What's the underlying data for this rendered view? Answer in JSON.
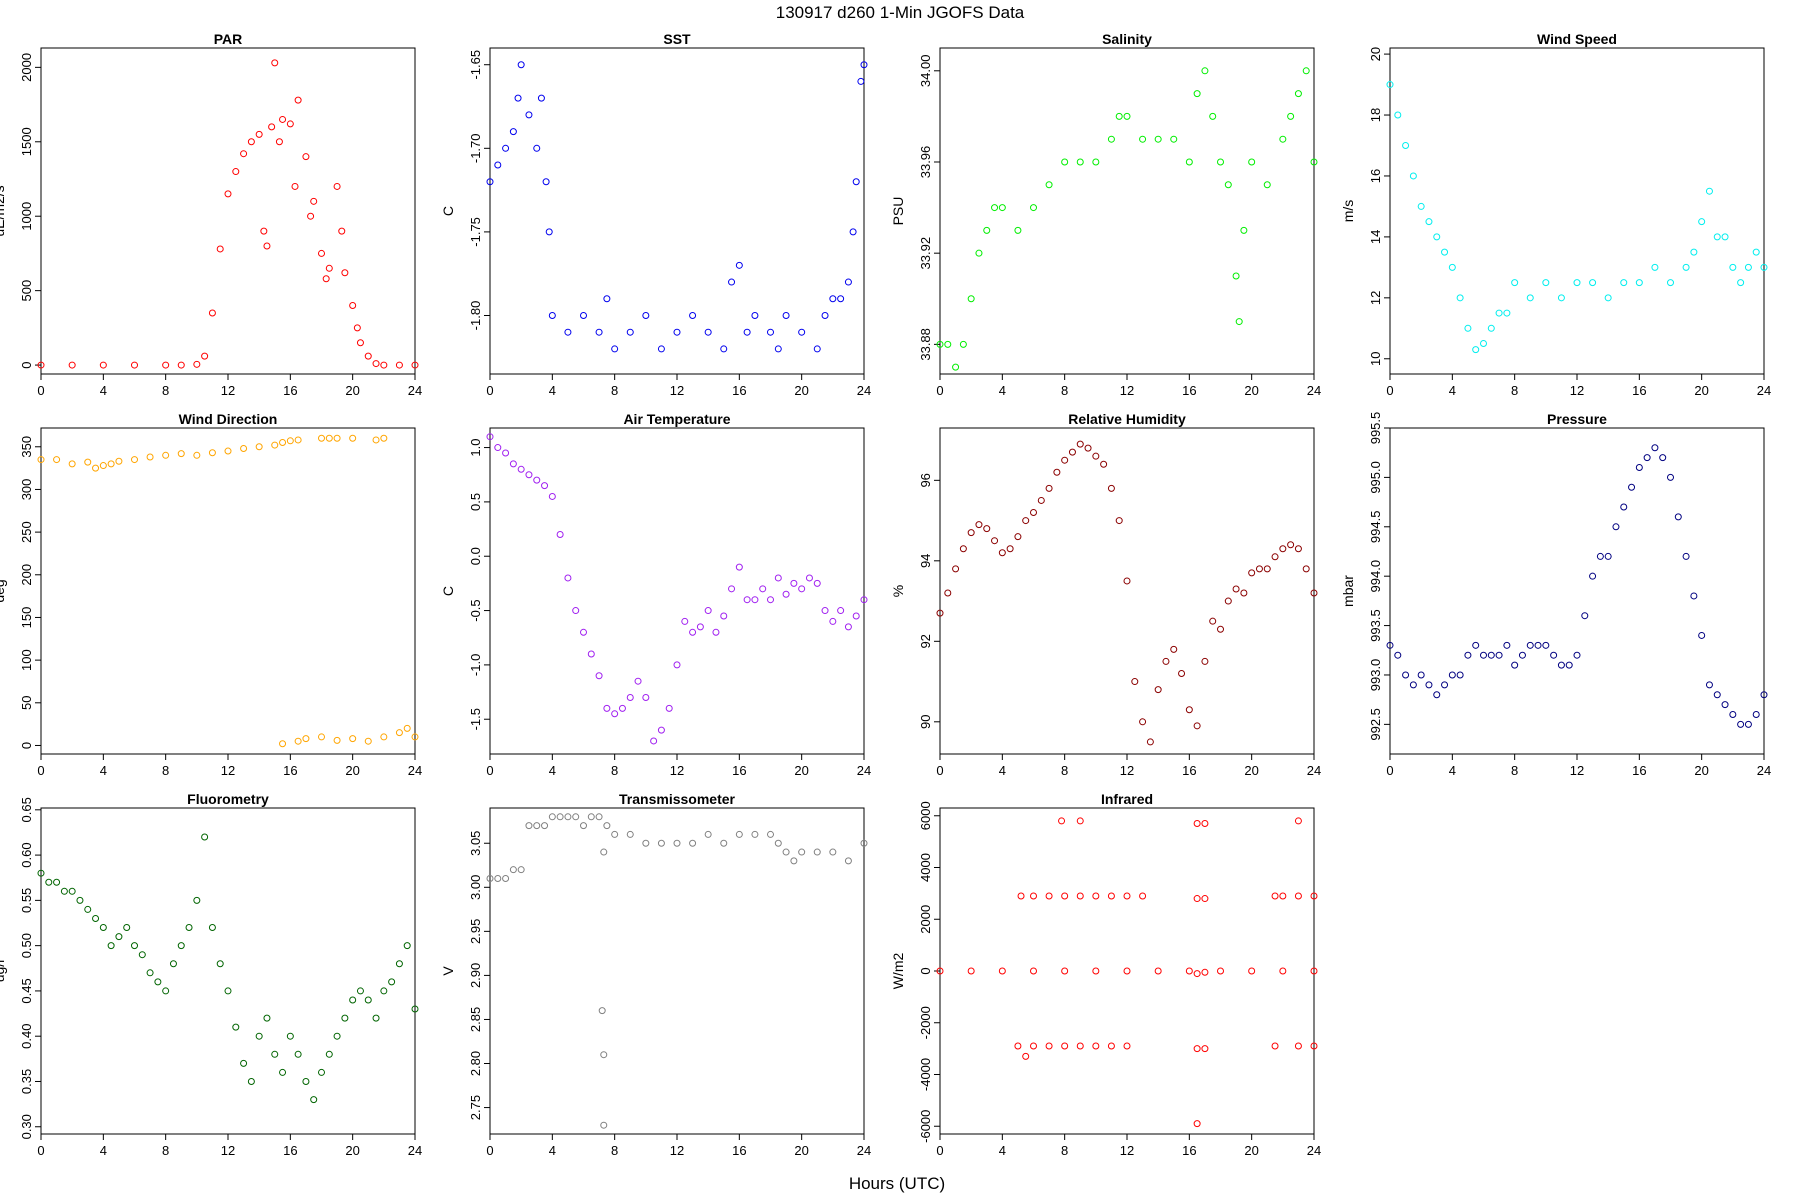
{
  "figure": {
    "title": "130917   d260   1-Min  JGOFS Data",
    "xlabel": "Hours (UTC)"
  },
  "chart_data": [
    {
      "type": "scatter",
      "title": "PAR",
      "ylabel": "uE/m2/s",
      "color": "#ff0000",
      "xlim": [
        0,
        24
      ],
      "xticks": [
        0,
        4,
        8,
        12,
        16,
        20,
        24
      ],
      "ylim": [
        -60,
        2130
      ],
      "yticks": [
        0,
        500,
        1000,
        1500,
        2000
      ],
      "x": [
        0,
        2,
        4,
        6,
        8,
        9,
        10,
        10.5,
        11,
        11.5,
        12,
        12.5,
        13,
        13.5,
        14,
        14.3,
        14.5,
        14.8,
        15,
        15.3,
        15.5,
        16,
        16.3,
        16.5,
        17,
        17.3,
        17.5,
        18,
        18.3,
        18.5,
        19,
        19.3,
        19.5,
        20,
        20.3,
        20.5,
        21,
        21.5,
        22,
        23,
        24
      ],
      "y": [
        0,
        0,
        0,
        0,
        0,
        0,
        5,
        60,
        350,
        780,
        1150,
        1300,
        1420,
        1500,
        1550,
        900,
        800,
        1600,
        2030,
        1500,
        1650,
        1620,
        1200,
        1780,
        1400,
        1000,
        1100,
        750,
        580,
        650,
        1200,
        900,
        620,
        400,
        250,
        150,
        60,
        10,
        0,
        0,
        0
      ]
    },
    {
      "type": "scatter",
      "title": "SST",
      "ylabel": "C",
      "color": "#0000ee",
      "xlim": [
        0,
        24
      ],
      "xticks": [
        0,
        4,
        8,
        12,
        16,
        20,
        24
      ],
      "ylim": [
        -1.835,
        -1.64
      ],
      "yticks": [
        -1.8,
        -1.75,
        -1.7,
        -1.65
      ],
      "x": [
        0,
        0.5,
        1,
        1.5,
        1.8,
        2,
        2.5,
        3,
        3.3,
        3.6,
        3.8,
        4,
        5,
        6,
        7,
        7.5,
        8,
        9,
        10,
        11,
        12,
        13,
        14,
        15,
        15.5,
        16,
        16.5,
        17,
        18,
        18.5,
        19,
        20,
        21,
        21.5,
        22,
        22.5,
        23,
        23.3,
        23.5,
        23.8,
        24
      ],
      "y": [
        -1.72,
        -1.71,
        -1.7,
        -1.69,
        -1.67,
        -1.65,
        -1.68,
        -1.7,
        -1.67,
        -1.72,
        -1.75,
        -1.8,
        -1.81,
        -1.8,
        -1.81,
        -1.79,
        -1.82,
        -1.81,
        -1.8,
        -1.82,
        -1.81,
        -1.8,
        -1.81,
        -1.82,
        -1.78,
        -1.77,
        -1.81,
        -1.8,
        -1.81,
        -1.82,
        -1.8,
        -1.81,
        -1.82,
        -1.8,
        -1.79,
        -1.79,
        -1.78,
        -1.75,
        -1.72,
        -1.66,
        -1.65
      ]
    },
    {
      "type": "scatter",
      "title": "Salinity",
      "ylabel": "PSU",
      "color": "#00ee00",
      "xlim": [
        0,
        24
      ],
      "xticks": [
        0,
        4,
        8,
        12,
        16,
        20,
        24
      ],
      "ylim": [
        33.867,
        34.01
      ],
      "yticks": [
        33.88,
        33.92,
        33.96,
        34.0
      ],
      "x": [
        0,
        0.5,
        1,
        1.5,
        2,
        2.5,
        3,
        3.5,
        4,
        5,
        6,
        7,
        8,
        9,
        10,
        11,
        11.5,
        12,
        13,
        14,
        15,
        16,
        16.5,
        17,
        17.5,
        18,
        18.5,
        19,
        19.2,
        19.5,
        20,
        21,
        22,
        22.5,
        23,
        23.5,
        24
      ],
      "y": [
        33.88,
        33.88,
        33.87,
        33.88,
        33.9,
        33.92,
        33.93,
        33.94,
        33.94,
        33.93,
        33.94,
        33.95,
        33.96,
        33.96,
        33.96,
        33.97,
        33.98,
        33.98,
        33.97,
        33.97,
        33.97,
        33.96,
        33.99,
        34.0,
        33.98,
        33.96,
        33.95,
        33.91,
        33.89,
        33.93,
        33.96,
        33.95,
        33.97,
        33.98,
        33.99,
        34.0,
        33.96
      ]
    },
    {
      "type": "scatter",
      "title": "Wind Speed",
      "ylabel": "m/s",
      "color": "#00eeee",
      "xlim": [
        0,
        24
      ],
      "xticks": [
        0,
        4,
        8,
        12,
        16,
        20,
        24
      ],
      "ylim": [
        9.5,
        20.2
      ],
      "yticks": [
        10,
        12,
        14,
        16,
        18,
        20
      ],
      "x": [
        0,
        0.5,
        1,
        1.5,
        2,
        2.5,
        3,
        3.5,
        4,
        4.5,
        5,
        5.5,
        6,
        6.5,
        7,
        7.5,
        8,
        9,
        10,
        11,
        12,
        13,
        14,
        15,
        16,
        17,
        18,
        19,
        19.5,
        20,
        20.5,
        21,
        21.5,
        22,
        22.5,
        23,
        23.5,
        24
      ],
      "y": [
        19.0,
        18.0,
        17.0,
        16.0,
        15.0,
        14.5,
        14.0,
        13.5,
        13.0,
        12.0,
        11.0,
        10.3,
        10.5,
        11.0,
        11.5,
        11.5,
        12.5,
        12.0,
        12.5,
        12.0,
        12.5,
        12.5,
        12.0,
        12.5,
        12.5,
        13.0,
        12.5,
        13.0,
        13.5,
        14.5,
        15.5,
        14.0,
        14.0,
        13.0,
        12.5,
        13.0,
        13.5,
        13.0
      ]
    },
    {
      "type": "scatter",
      "title": "Wind Direction",
      "ylabel": "deg",
      "color": "#ffa500",
      "xlim": [
        0,
        24
      ],
      "xticks": [
        0,
        4,
        8,
        12,
        16,
        20,
        24
      ],
      "ylim": [
        -10,
        372
      ],
      "yticks": [
        0,
        50,
        100,
        150,
        200,
        250,
        300,
        350
      ],
      "x": [
        0,
        1,
        2,
        3,
        3.5,
        4,
        4.5,
        5,
        6,
        7,
        8,
        9,
        10,
        11,
        12,
        13,
        14,
        15,
        15.5,
        16,
        16.5,
        18,
        18.5,
        19,
        20,
        21.5,
        22,
        15.5,
        16.5,
        17,
        18,
        19,
        20,
        21,
        22,
        23,
        23.5,
        24
      ],
      "y": [
        335,
        335,
        330,
        332,
        325,
        328,
        330,
        333,
        335,
        338,
        340,
        342,
        340,
        343,
        345,
        348,
        350,
        352,
        355,
        357,
        358,
        360,
        360,
        360,
        360,
        358,
        360,
        2,
        5,
        8,
        10,
        6,
        8,
        5,
        10,
        15,
        20,
        10
      ]
    },
    {
      "type": "scatter",
      "title": "Air Temperature",
      "ylabel": "C",
      "color": "#a020f0",
      "xlim": [
        0,
        24
      ],
      "xticks": [
        0,
        4,
        8,
        12,
        16,
        20,
        24
      ],
      "ylim": [
        -1.82,
        1.18
      ],
      "yticks": [
        -1.5,
        -1.0,
        -0.5,
        0.0,
        0.5,
        1.0
      ],
      "x": [
        0,
        0.5,
        1,
        1.5,
        2,
        2.5,
        3,
        3.5,
        4,
        4.5,
        5,
        5.5,
        6,
        6.5,
        7,
        7.5,
        8,
        8.5,
        9,
        9.5,
        10,
        10.5,
        11,
        11.5,
        12,
        12.5,
        13,
        13.5,
        14,
        14.5,
        15,
        15.5,
        16,
        16.5,
        17,
        17.5,
        18,
        18.5,
        19,
        19.5,
        20,
        20.5,
        21,
        21.5,
        22,
        22.5,
        23,
        23.5,
        24
      ],
      "y": [
        1.1,
        1.0,
        0.95,
        0.85,
        0.8,
        0.75,
        0.7,
        0.65,
        0.55,
        0.2,
        -0.2,
        -0.5,
        -0.7,
        -0.9,
        -1.1,
        -1.4,
        -1.45,
        -1.4,
        -1.3,
        -1.15,
        -1.3,
        -1.7,
        -1.6,
        -1.4,
        -1.0,
        -0.6,
        -0.7,
        -0.65,
        -0.5,
        -0.7,
        -0.55,
        -0.3,
        -0.1,
        -0.4,
        -0.4,
        -0.3,
        -0.4,
        -0.2,
        -0.35,
        -0.25,
        -0.3,
        -0.2,
        -0.25,
        -0.5,
        -0.6,
        -0.5,
        -0.65,
        -0.55,
        -0.4
      ]
    },
    {
      "type": "scatter",
      "title": "Relative Humidity",
      "ylabel": "%",
      "color": "#8b0000",
      "xlim": [
        0,
        24
      ],
      "xticks": [
        0,
        4,
        8,
        12,
        16,
        20,
        24
      ],
      "ylim": [
        89.2,
        97.3
      ],
      "yticks": [
        90,
        92,
        94,
        96
      ],
      "x": [
        0,
        0.5,
        1,
        1.5,
        2,
        2.5,
        3,
        3.5,
        4,
        4.5,
        5,
        5.5,
        6,
        6.5,
        7,
        7.5,
        8,
        8.5,
        9,
        9.5,
        10,
        10.5,
        11,
        11.5,
        12,
        12.5,
        13,
        13.5,
        14,
        14.5,
        15,
        15.5,
        16,
        16.5,
        17,
        17.5,
        18,
        18.5,
        19,
        19.5,
        20,
        20.5,
        21,
        21.5,
        22,
        22.5,
        23,
        23.5,
        24
      ],
      "y": [
        92.7,
        93.2,
        93.8,
        94.3,
        94.7,
        94.9,
        94.8,
        94.5,
        94.2,
        94.3,
        94.6,
        95.0,
        95.2,
        95.5,
        95.8,
        96.2,
        96.5,
        96.7,
        96.9,
        96.8,
        96.6,
        96.4,
        95.8,
        95.0,
        93.5,
        91.0,
        90.0,
        89.5,
        90.8,
        91.5,
        91.8,
        91.2,
        90.3,
        89.9,
        91.5,
        92.5,
        92.3,
        93.0,
        93.3,
        93.2,
        93.7,
        93.8,
        93.8,
        94.1,
        94.3,
        94.4,
        94.3,
        93.8,
        93.2
      ]
    },
    {
      "type": "scatter",
      "title": "Pressure",
      "ylabel": "mbar",
      "color": "#000080",
      "xlim": [
        0,
        24
      ],
      "xticks": [
        0,
        4,
        8,
        12,
        16,
        20,
        24
      ],
      "ylim": [
        992.2,
        995.5
      ],
      "yticks": [
        992.5,
        993.0,
        993.5,
        994.0,
        994.5,
        995.0,
        995.5
      ],
      "x": [
        0,
        0.5,
        1,
        1.5,
        2,
        2.5,
        3,
        3.5,
        4,
        4.5,
        5,
        5.5,
        6,
        6.5,
        7,
        7.5,
        8,
        8.5,
        9,
        9.5,
        10,
        10.5,
        11,
        11.5,
        12,
        12.5,
        13,
        13.5,
        14,
        14.5,
        15,
        15.5,
        16,
        16.5,
        17,
        17.5,
        18,
        18.5,
        19,
        19.5,
        20,
        20.5,
        21,
        21.5,
        22,
        22.5,
        23,
        23.5,
        24
      ],
      "y": [
        993.3,
        993.2,
        993.0,
        992.9,
        993.0,
        992.9,
        992.8,
        992.9,
        993.0,
        993.0,
        993.2,
        993.3,
        993.2,
        993.2,
        993.2,
        993.3,
        993.1,
        993.2,
        993.3,
        993.3,
        993.3,
        993.2,
        993.1,
        993.1,
        993.2,
        993.6,
        994.0,
        994.2,
        994.2,
        994.5,
        994.7,
        994.9,
        995.1,
        995.2,
        995.3,
        995.2,
        995.0,
        994.6,
        994.2,
        993.8,
        993.4,
        992.9,
        992.8,
        992.7,
        992.6,
        992.5,
        992.5,
        992.6,
        992.8
      ]
    },
    {
      "type": "scatter",
      "title": "Fluorometry",
      "ylabel": "ug/l",
      "color": "#006400",
      "xlim": [
        0,
        24
      ],
      "xticks": [
        0,
        4,
        8,
        12,
        16,
        20,
        24
      ],
      "ylim": [
        0.292,
        0.652
      ],
      "yticks": [
        0.3,
        0.35,
        0.4,
        0.45,
        0.5,
        0.55,
        0.6,
        0.65
      ],
      "x": [
        0,
        0.5,
        1,
        1.5,
        2,
        2.5,
        3,
        3.5,
        4,
        4.5,
        5,
        5.5,
        6,
        6.5,
        7,
        7.5,
        8,
        8.5,
        9,
        9.5,
        10,
        10.5,
        11,
        11.5,
        12,
        12.5,
        13,
        13.5,
        14,
        14.5,
        15,
        15.5,
        16,
        16.5,
        17,
        17.5,
        18,
        18.5,
        19,
        19.5,
        20,
        20.5,
        21,
        21.5,
        22,
        22.5,
        23,
        23.5,
        24
      ],
      "y": [
        0.58,
        0.57,
        0.57,
        0.56,
        0.56,
        0.55,
        0.54,
        0.53,
        0.52,
        0.5,
        0.51,
        0.52,
        0.5,
        0.49,
        0.47,
        0.46,
        0.45,
        0.48,
        0.5,
        0.52,
        0.55,
        0.62,
        0.52,
        0.48,
        0.45,
        0.41,
        0.37,
        0.35,
        0.4,
        0.42,
        0.38,
        0.36,
        0.4,
        0.38,
        0.35,
        0.33,
        0.36,
        0.38,
        0.4,
        0.42,
        0.44,
        0.45,
        0.44,
        0.42,
        0.45,
        0.46,
        0.48,
        0.5,
        0.43
      ]
    },
    {
      "type": "scatter",
      "title": "Transmissometer",
      "ylabel": "V",
      "color": "#808080",
      "xlim": [
        0,
        24
      ],
      "xticks": [
        0,
        4,
        8,
        12,
        16,
        20,
        24
      ],
      "ylim": [
        2.72,
        3.09
      ],
      "yticks": [
        2.75,
        2.8,
        2.85,
        2.9,
        2.95,
        3.0,
        3.05
      ],
      "x": [
        0,
        0.5,
        1,
        1.5,
        2,
        2.5,
        3,
        3.5,
        4,
        4.5,
        5,
        5.5,
        6,
        6.5,
        7,
        7.2,
        7.3,
        7.3,
        7.3,
        7.5,
        8,
        9,
        10,
        11,
        12,
        13,
        14,
        15,
        16,
        17,
        18,
        18.5,
        19,
        19.5,
        20,
        21,
        22,
        23,
        24
      ],
      "y": [
        3.01,
        3.01,
        3.01,
        3.02,
        3.02,
        3.07,
        3.07,
        3.07,
        3.08,
        3.08,
        3.08,
        3.08,
        3.07,
        3.08,
        3.08,
        2.86,
        2.81,
        2.73,
        3.04,
        3.07,
        3.06,
        3.06,
        3.05,
        3.05,
        3.05,
        3.05,
        3.06,
        3.05,
        3.06,
        3.06,
        3.06,
        3.05,
        3.04,
        3.03,
        3.04,
        3.04,
        3.04,
        3.03,
        3.05
      ]
    },
    {
      "type": "scatter",
      "title": "Infrared",
      "ylabel": "W/m2",
      "color": "#ff0000",
      "xlim": [
        0,
        24
      ],
      "xticks": [
        0,
        4,
        8,
        12,
        16,
        20,
        24
      ],
      "ylim": [
        -6300,
        6300
      ],
      "yticks": [
        -6000,
        -4000,
        -2000,
        0,
        2000,
        4000,
        6000
      ],
      "x": [
        0,
        2,
        4,
        6,
        8,
        10,
        12,
        14,
        16,
        16.5,
        17,
        18,
        20,
        22,
        24,
        5.2,
        6,
        7,
        8,
        9,
        10,
        11,
        12,
        13,
        16.5,
        17,
        21.5,
        22,
        23,
        24,
        5,
        6,
        7,
        8,
        9,
        10,
        11,
        12,
        16.5,
        17,
        21.5,
        23,
        24,
        7.8,
        9,
        16.5,
        17,
        23,
        5.5,
        16.5
      ],
      "y": [
        0,
        0,
        0,
        0,
        0,
        0,
        0,
        0,
        0,
        -100,
        -50,
        0,
        0,
        0,
        0,
        2900,
        2900,
        2900,
        2900,
        2900,
        2900,
        2900,
        2900,
        2900,
        2800,
        2800,
        2900,
        2900,
        2900,
        2900,
        -2900,
        -2900,
        -2900,
        -2900,
        -2900,
        -2900,
        -2900,
        -2900,
        -3000,
        -3000,
        -2900,
        -2900,
        -2900,
        5800,
        5800,
        5700,
        5700,
        5800,
        -3300,
        -5900
      ]
    }
  ]
}
